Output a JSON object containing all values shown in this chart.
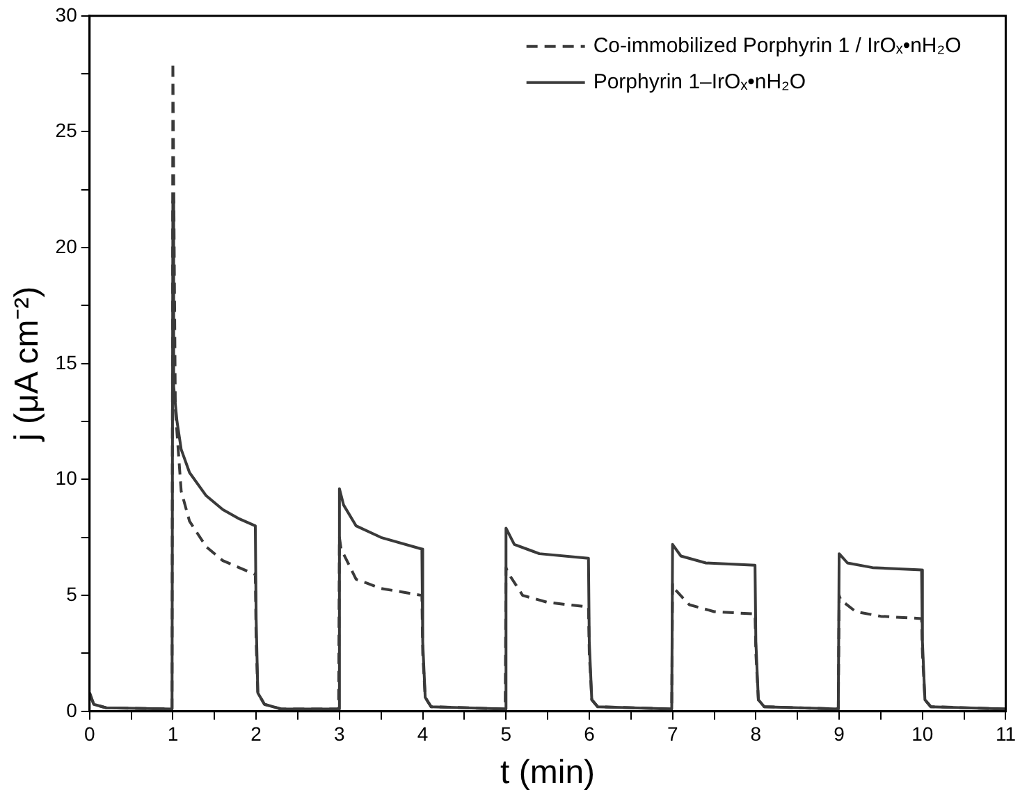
{
  "chart_data": {
    "type": "line",
    "xlabel": "t (min)",
    "ylabel": "j (μA cm⁻²)",
    "xlim": [
      0,
      11
    ],
    "ylim": [
      0,
      30
    ],
    "xticks": [
      0,
      {
        "value": 0.5,
        "label": null
      },
      1,
      {
        "value": 1.5,
        "label": null
      },
      2,
      {
        "value": 2.5,
        "label": null
      },
      3,
      {
        "value": 3.5,
        "label": null
      },
      4,
      {
        "value": 4.5,
        "label": null
      },
      5,
      {
        "value": 5.5,
        "label": null
      },
      6,
      {
        "value": 6.5,
        "label": null
      },
      7,
      {
        "value": 7.5,
        "label": null
      },
      8,
      {
        "value": 8.5,
        "label": null
      },
      9,
      {
        "value": 9.5,
        "label": null
      },
      10,
      {
        "value": 10.5,
        "label": null
      },
      11
    ],
    "yticks": [
      0,
      {
        "value": 2.5,
        "label": null
      },
      5,
      {
        "value": 7.5,
        "label": null
      },
      10,
      {
        "value": 12.5,
        "label": null
      },
      15,
      {
        "value": 17.5,
        "label": null
      },
      20,
      {
        "value": 22.5,
        "label": null
      },
      25,
      {
        "value": 27.5,
        "label": null
      },
      30
    ],
    "grid": false,
    "legend": "top right",
    "marker": "none",
    "series": [
      {
        "name": "Co-immobilized Porphyrin 1 / IrOₓ•nH₂O",
        "color": "#3a3a3a",
        "line_style": "dashed",
        "x": [
          0,
          0.05,
          0.2,
          0.99,
          1.0,
          1.03,
          1.1,
          1.2,
          1.4,
          1.6,
          1.99,
          2.0,
          2.02,
          2.1,
          2.3,
          2.99,
          3.0,
          3.02,
          3.2,
          3.5,
          3.99,
          4.0,
          4.03,
          4.1,
          4.99,
          5.0,
          5.02,
          5.2,
          5.5,
          5.99,
          6.0,
          6.03,
          6.1,
          6.99,
          7.0,
          7.02,
          7.2,
          7.5,
          7.99,
          8.0,
          8.03,
          8.1,
          8.99,
          9.0,
          9.02,
          9.2,
          9.5,
          9.99,
          10.0,
          10.03,
          10.1,
          11
        ],
        "values": [
          0.8,
          0.3,
          0.15,
          0.1,
          28,
          13,
          9.5,
          8.2,
          7.1,
          6.5,
          5.9,
          3,
          0.8,
          0.3,
          0.1,
          0.1,
          7.5,
          7,
          5.7,
          5.3,
          5.0,
          2.5,
          0.6,
          0.2,
          0.1,
          6.2,
          6,
          5.0,
          4.7,
          4.5,
          2.5,
          0.5,
          0.2,
          0.1,
          5.5,
          5.3,
          4.6,
          4.3,
          4.2,
          2.5,
          0.5,
          0.2,
          0.1,
          5.0,
          4.8,
          4.3,
          4.1,
          4.0,
          2.5,
          0.5,
          0.2,
          0.1
        ]
      },
      {
        "name": "Porphyrin 1–IrOₓ•nH₂O",
        "color": "#3a3a3a",
        "line_style": "solid",
        "x": [
          0,
          0.05,
          0.2,
          0.99,
          1.0,
          1.01,
          1.05,
          1.1,
          1.2,
          1.4,
          1.6,
          1.8,
          1.99,
          2.0,
          2.02,
          2.1,
          2.3,
          2.99,
          3.0,
          3.05,
          3.2,
          3.5,
          3.99,
          4.0,
          4.03,
          4.1,
          4.99,
          5.0,
          5.1,
          5.4,
          5.99,
          6.0,
          6.03,
          6.1,
          6.99,
          7.0,
          7.1,
          7.4,
          7.99,
          8.0,
          8.03,
          8.1,
          8.99,
          9.0,
          9.1,
          9.4,
          9.99,
          10.0,
          10.03,
          10.1,
          11
        ],
        "values": [
          0.8,
          0.3,
          0.15,
          0.1,
          22,
          14,
          12.5,
          11.3,
          10.3,
          9.3,
          8.7,
          8.3,
          8.0,
          4,
          0.8,
          0.3,
          0.1,
          0.1,
          9.6,
          8.9,
          8.0,
          7.5,
          7.0,
          3,
          0.6,
          0.2,
          0.1,
          7.9,
          7.2,
          6.8,
          6.6,
          3,
          0.5,
          0.2,
          0.1,
          7.2,
          6.7,
          6.4,
          6.3,
          3,
          0.5,
          0.2,
          0.1,
          6.8,
          6.4,
          6.2,
          6.1,
          3,
          0.5,
          0.2,
          0.1
        ]
      }
    ]
  }
}
